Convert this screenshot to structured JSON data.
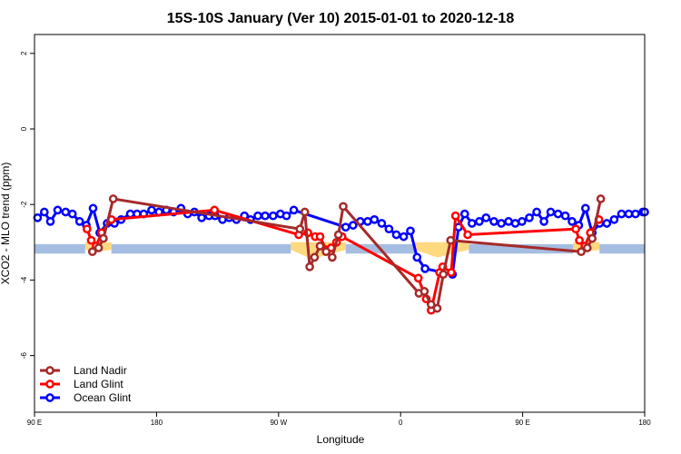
{
  "chart_data": {
    "type": "line",
    "title": "15S-10S January (Ver 10)   2015-01-01 to 2020-12-18",
    "xlabel": "Longitude",
    "ylabel": "XCO2 - MLO trend (ppm)",
    "xlim": [
      0,
      100
    ],
    "ylim": [
      -7.5,
      2.5
    ],
    "x_ticks": [
      {
        "value": 0,
        "label": "90 E"
      },
      {
        "value": 20,
        "label": "180"
      },
      {
        "value": 40,
        "label": "90 W"
      },
      {
        "value": 60,
        "label": "0"
      },
      {
        "value": 80,
        "label": "90 E"
      },
      {
        "value": 100,
        "label": "180"
      }
    ],
    "y_ticks": [
      {
        "value": 2,
        "label": "2"
      },
      {
        "value": 0,
        "label": "0"
      },
      {
        "value": -2,
        "label": "-2"
      },
      {
        "value": -4,
        "label": "-4"
      },
      {
        "value": -6,
        "label": "-6"
      }
    ],
    "land_band": {
      "y_top": -3.0,
      "y_bottom": -3.2,
      "color": "#ffd980",
      "segments": [
        [
          8.3,
          12.6
        ],
        [
          42.0,
          51.0
        ],
        [
          62.4,
          71.2
        ],
        [
          88.3,
          92.6
        ]
      ],
      "peaks": [
        {
          "x": 10.0,
          "y": -3.25
        },
        {
          "x": 45.5,
          "y": -3.45
        },
        {
          "x": 66.0,
          "y": -3.4
        },
        {
          "x": 90.0,
          "y": -3.25
        }
      ]
    },
    "ocean_band": {
      "y_top": -3.05,
      "y_bottom": -3.3,
      "color": "#a5bde0"
    },
    "series": [
      {
        "name": "Land Nadir",
        "color": "#a52a2a",
        "points": [
          [
            9.5,
            -3.25
          ],
          [
            10.5,
            -3.15
          ],
          [
            11.3,
            -2.9
          ],
          [
            12.9,
            -1.85
          ],
          [
            43.5,
            -2.65
          ],
          [
            44.3,
            -2.2
          ],
          [
            45.1,
            -3.65
          ],
          [
            45.9,
            -3.4
          ],
          [
            46.8,
            -3.1
          ],
          [
            47.8,
            -3.25
          ],
          [
            48.8,
            -3.4
          ],
          [
            49.8,
            -2.8
          ],
          [
            50.6,
            -2.05
          ],
          [
            63.0,
            -4.35
          ],
          [
            63.9,
            -4.3
          ],
          [
            65.0,
            -4.65
          ],
          [
            66.0,
            -4.75
          ],
          [
            67.0,
            -3.85
          ],
          [
            68.2,
            -2.95
          ],
          [
            89.6,
            -3.25
          ],
          [
            90.6,
            -3.15
          ],
          [
            91.4,
            -2.9
          ],
          [
            92.8,
            -1.85
          ]
        ]
      },
      {
        "name": "Land Glint",
        "color": "#ff0000",
        "points": [
          [
            8.6,
            -2.65
          ],
          [
            9.3,
            -2.95
          ],
          [
            10.1,
            -3.1
          ],
          [
            11.0,
            -2.75
          ],
          [
            12.6,
            -2.4
          ],
          [
            29.5,
            -2.15
          ],
          [
            43.3,
            -2.8
          ],
          [
            44.8,
            -2.75
          ],
          [
            46.0,
            -2.85
          ],
          [
            46.8,
            -2.85
          ],
          [
            47.8,
            -3.2
          ],
          [
            48.6,
            -3.15
          ],
          [
            49.5,
            -3.0
          ],
          [
            50.4,
            -2.85
          ],
          [
            62.9,
            -3.95
          ],
          [
            64.2,
            -4.5
          ],
          [
            65.0,
            -4.8
          ],
          [
            66.4,
            -3.8
          ],
          [
            66.9,
            -3.65
          ],
          [
            68.3,
            -3.8
          ],
          [
            69.0,
            -2.3
          ],
          [
            71.0,
            -2.8
          ],
          [
            88.7,
            -2.65
          ],
          [
            89.3,
            -2.95
          ],
          [
            90.2,
            -3.1
          ],
          [
            91.1,
            -2.75
          ],
          [
            92.5,
            -2.4
          ]
        ]
      },
      {
        "name": "Ocean Glint",
        "color": "#0000ff",
        "points": [
          [
            0.5,
            -2.35
          ],
          [
            1.6,
            -2.2
          ],
          [
            2.6,
            -2.45
          ],
          [
            3.8,
            -2.15
          ],
          [
            5.1,
            -2.2
          ],
          [
            6.2,
            -2.25
          ],
          [
            7.4,
            -2.45
          ],
          [
            8.5,
            -2.55
          ],
          [
            9.6,
            -2.1
          ],
          [
            10.7,
            -2.75
          ],
          [
            11.9,
            -2.5
          ],
          [
            13.1,
            -2.5
          ],
          [
            14.2,
            -2.4
          ],
          [
            15.7,
            -2.25
          ],
          [
            16.8,
            -2.25
          ],
          [
            17.9,
            -2.25
          ],
          [
            19.2,
            -2.15
          ],
          [
            20.4,
            -2.2
          ],
          [
            21.6,
            -2.15
          ],
          [
            22.8,
            -2.2
          ],
          [
            24.0,
            -2.1
          ],
          [
            25.1,
            -2.25
          ],
          [
            26.2,
            -2.2
          ],
          [
            27.4,
            -2.35
          ],
          [
            28.6,
            -2.3
          ],
          [
            29.6,
            -2.3
          ],
          [
            30.8,
            -2.4
          ],
          [
            31.9,
            -2.35
          ],
          [
            33.1,
            -2.4
          ],
          [
            34.4,
            -2.3
          ],
          [
            35.4,
            -2.4
          ],
          [
            36.6,
            -2.3
          ],
          [
            37.8,
            -2.3
          ],
          [
            39.1,
            -2.3
          ],
          [
            40.3,
            -2.25
          ],
          [
            41.3,
            -2.3
          ],
          [
            42.5,
            -2.15
          ],
          [
            51.0,
            -2.6
          ],
          [
            52.2,
            -2.55
          ],
          [
            53.4,
            -2.45
          ],
          [
            54.6,
            -2.45
          ],
          [
            55.7,
            -2.4
          ],
          [
            56.9,
            -2.5
          ],
          [
            58.1,
            -2.65
          ],
          [
            59.3,
            -2.8
          ],
          [
            60.5,
            -2.85
          ],
          [
            61.6,
            -2.7
          ],
          [
            62.7,
            -3.4
          ],
          [
            64.0,
            -3.7
          ],
          [
            68.5,
            -3.85
          ],
          [
            69.5,
            -2.6
          ],
          [
            70.5,
            -2.25
          ],
          [
            71.7,
            -2.5
          ],
          [
            72.9,
            -2.45
          ],
          [
            74.0,
            -2.35
          ],
          [
            75.3,
            -2.45
          ],
          [
            76.5,
            -2.5
          ],
          [
            77.7,
            -2.45
          ],
          [
            78.8,
            -2.5
          ],
          [
            79.9,
            -2.45
          ],
          [
            81.1,
            -2.35
          ],
          [
            82.3,
            -2.2
          ],
          [
            83.5,
            -2.45
          ],
          [
            84.6,
            -2.2
          ],
          [
            85.8,
            -2.25
          ],
          [
            87.0,
            -2.3
          ],
          [
            88.1,
            -2.45
          ],
          [
            89.2,
            -2.55
          ],
          [
            90.3,
            -2.1
          ],
          [
            91.4,
            -2.75
          ],
          [
            92.6,
            -2.5
          ],
          [
            93.8,
            -2.5
          ],
          [
            95.0,
            -2.4
          ],
          [
            96.2,
            -2.25
          ],
          [
            97.4,
            -2.25
          ],
          [
            98.5,
            -2.25
          ],
          [
            99.7,
            -2.2
          ],
          [
            100.0,
            -2.2
          ]
        ]
      }
    ],
    "legend": {
      "placement": "bottom-left",
      "entries": [
        "Land Nadir",
        "Land Glint",
        "Ocean Glint"
      ]
    }
  }
}
